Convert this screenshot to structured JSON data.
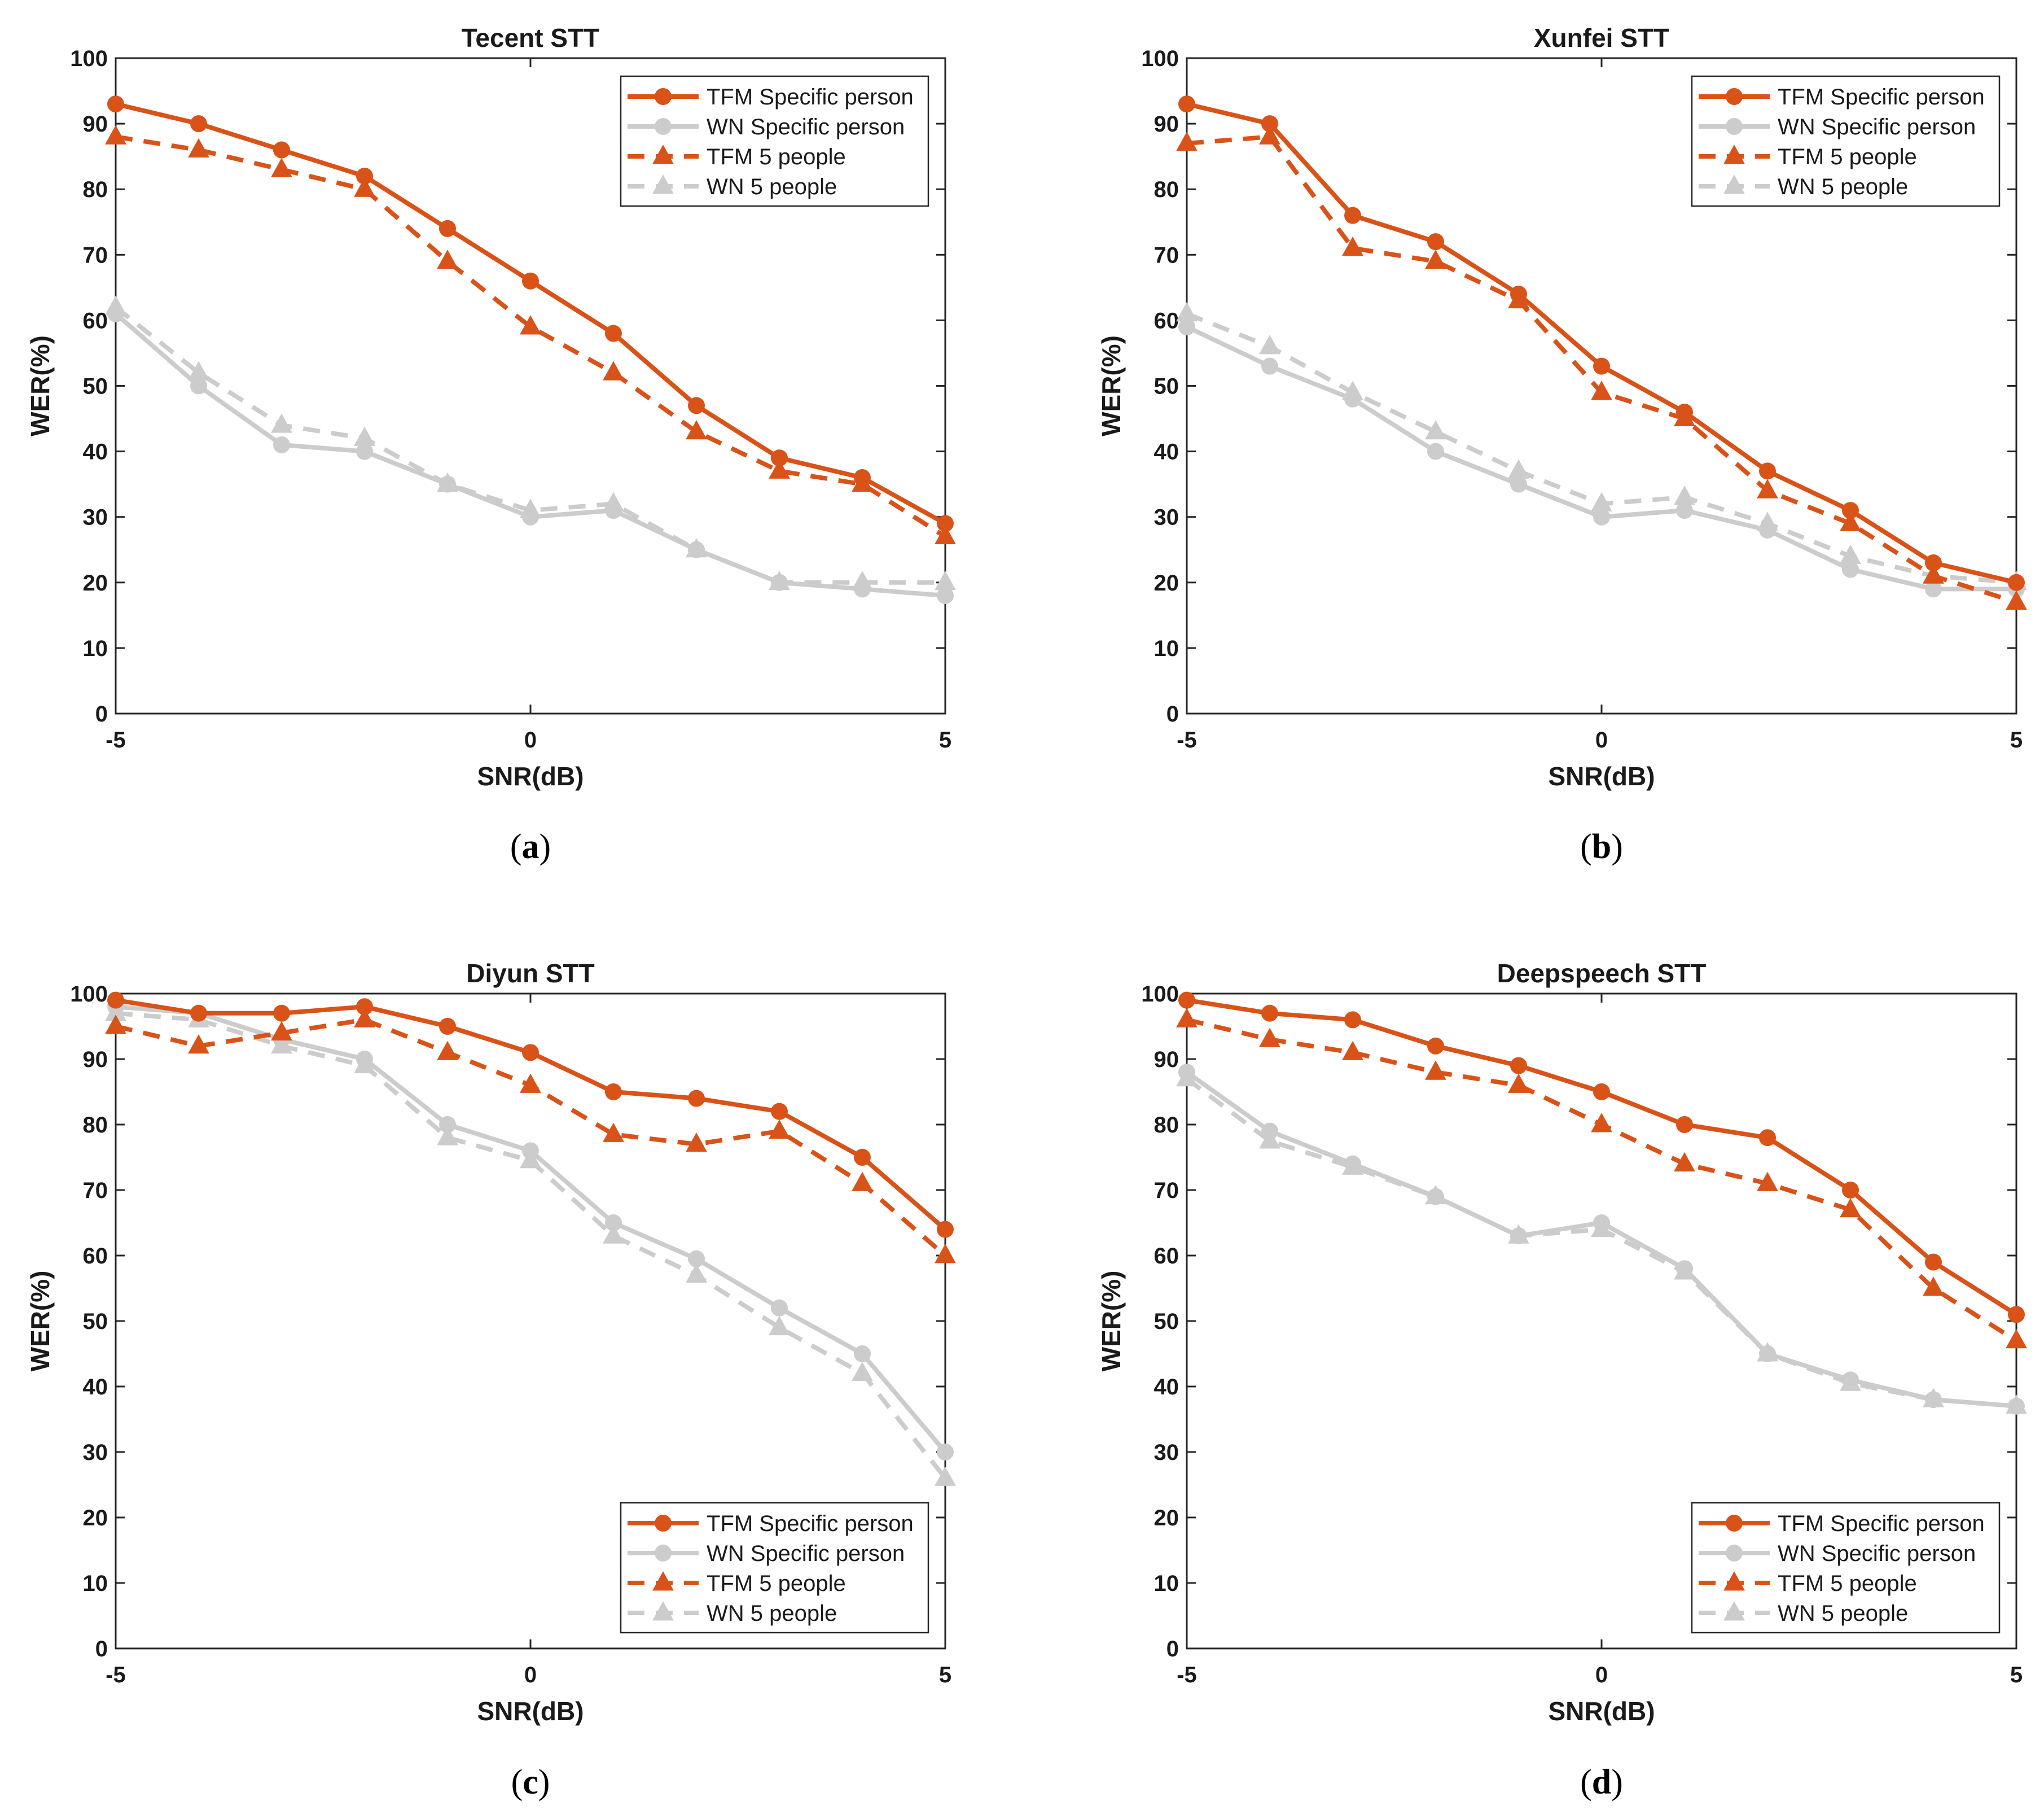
{
  "colors": {
    "tfm": "#d95319",
    "wn": "#cccccc",
    "axis": "#262626"
  },
  "chart_data": [
    {
      "type": "line",
      "title": "Tecent STT",
      "caption": "a",
      "xlabel": "SNR(dB)",
      "ylabel": "WER(%)",
      "xlim": [
        -5,
        5
      ],
      "ylim": [
        0,
        100
      ],
      "xticks": [
        -5,
        0,
        5
      ],
      "yticks": [
        0,
        10,
        20,
        30,
        40,
        50,
        60,
        70,
        80,
        90,
        100
      ],
      "legend_position": "top-right",
      "x": [
        -5,
        -4,
        -3,
        -2,
        -1,
        0,
        1,
        2,
        3,
        4,
        5
      ],
      "series": [
        {
          "name": "TFM Specific person",
          "style": "tfm-solid",
          "values": [
            93,
            90,
            86,
            82,
            74,
            66,
            58,
            47,
            39,
            36,
            29
          ]
        },
        {
          "name": "WN Specific person",
          "style": "wn-solid",
          "values": [
            61,
            50,
            41,
            40,
            35,
            30,
            31,
            25,
            20,
            19,
            18
          ]
        },
        {
          "name": "TFM 5 people",
          "style": "tfm-dashed",
          "values": [
            88,
            86,
            83,
            80,
            69,
            59,
            52,
            43,
            37,
            35,
            27
          ]
        },
        {
          "name": "WN 5 people",
          "style": "wn-dashed",
          "values": [
            62,
            52,
            44,
            42,
            35,
            31,
            32,
            25,
            20,
            20,
            20
          ]
        }
      ]
    },
    {
      "type": "line",
      "title": "Xunfei STT",
      "caption": "b",
      "xlabel": "SNR(dB)",
      "ylabel": "WER(%)",
      "xlim": [
        -5,
        5
      ],
      "ylim": [
        0,
        100
      ],
      "xticks": [
        -5,
        0,
        5
      ],
      "yticks": [
        0,
        10,
        20,
        30,
        40,
        50,
        60,
        70,
        80,
        90,
        100
      ],
      "legend_position": "top-right",
      "x": [
        -5,
        -4,
        -3,
        -2,
        -1,
        0,
        1,
        2,
        3,
        4,
        5
      ],
      "series": [
        {
          "name": "TFM Specific person",
          "style": "tfm-solid",
          "values": [
            93,
            90,
            76,
            72,
            64,
            53,
            46,
            37,
            31,
            23,
            20
          ]
        },
        {
          "name": "WN Specific person",
          "style": "wn-solid",
          "values": [
            59,
            53,
            48,
            40,
            35,
            30,
            31,
            28,
            22,
            19,
            19
          ]
        },
        {
          "name": "TFM 5 people",
          "style": "tfm-dashed",
          "values": [
            87,
            88,
            71,
            69,
            63,
            49,
            45,
            34,
            29,
            21,
            17
          ]
        },
        {
          "name": "WN 5 people",
          "style": "wn-dashed",
          "values": [
            61,
            56,
            49,
            43,
            37,
            32,
            33,
            29,
            24,
            21,
            20
          ]
        }
      ]
    },
    {
      "type": "line",
      "title": "Diyun STT",
      "caption": "c",
      "xlabel": "SNR(dB)",
      "ylabel": "WER(%)",
      "xlim": [
        -5,
        5
      ],
      "ylim": [
        0,
        100
      ],
      "xticks": [
        -5,
        0,
        5
      ],
      "yticks": [
        0,
        10,
        20,
        30,
        40,
        50,
        60,
        70,
        80,
        90,
        100
      ],
      "legend_position": "bottom-right",
      "x": [
        -5,
        -4,
        -3,
        -2,
        -1,
        0,
        1,
        2,
        3,
        4,
        5
      ],
      "series": [
        {
          "name": "TFM Specific person",
          "style": "tfm-solid",
          "values": [
            99,
            97,
            97,
            98,
            95,
            91,
            85,
            84,
            82,
            75,
            64
          ]
        },
        {
          "name": "WN Specific person",
          "style": "wn-solid",
          "values": [
            98,
            97,
            93,
            90,
            80,
            76,
            65,
            59.5,
            52,
            45,
            30
          ]
        },
        {
          "name": "TFM 5 people",
          "style": "tfm-dashed",
          "values": [
            95,
            92,
            94,
            96,
            91,
            86,
            78.5,
            77,
            79,
            71,
            60
          ]
        },
        {
          "name": "WN 5 people",
          "style": "wn-dashed",
          "values": [
            97,
            96,
            92,
            89,
            78,
            74.5,
            63,
            57,
            49,
            42,
            26
          ]
        }
      ]
    },
    {
      "type": "line",
      "title": "Deepspeech STT",
      "caption": "d",
      "xlabel": "SNR(dB)",
      "ylabel": "WER(%)",
      "xlim": [
        -5,
        5
      ],
      "ylim": [
        0,
        100
      ],
      "xticks": [
        -5,
        0,
        5
      ],
      "yticks": [
        0,
        10,
        20,
        30,
        40,
        50,
        60,
        70,
        80,
        90,
        100
      ],
      "legend_position": "bottom-right",
      "x": [
        -5,
        -4,
        -3,
        -2,
        -1,
        0,
        1,
        2,
        3,
        4,
        5
      ],
      "series": [
        {
          "name": "TFM Specific person",
          "style": "tfm-solid",
          "values": [
            99,
            97,
            96,
            92,
            89,
            85,
            80,
            78,
            70,
            59,
            51
          ]
        },
        {
          "name": "WN Specific person",
          "style": "wn-solid",
          "values": [
            88,
            79,
            74,
            69,
            63,
            65,
            58,
            45,
            41,
            38,
            37
          ]
        },
        {
          "name": "TFM 5 people",
          "style": "tfm-dashed",
          "values": [
            96,
            93,
            91,
            88,
            86,
            80,
            74,
            71,
            67,
            55,
            47
          ]
        },
        {
          "name": "WN 5 people",
          "style": "wn-dashed",
          "values": [
            87,
            77.5,
            73.5,
            69,
            63,
            64,
            57.5,
            45,
            40.5,
            38,
            37
          ]
        }
      ]
    }
  ]
}
